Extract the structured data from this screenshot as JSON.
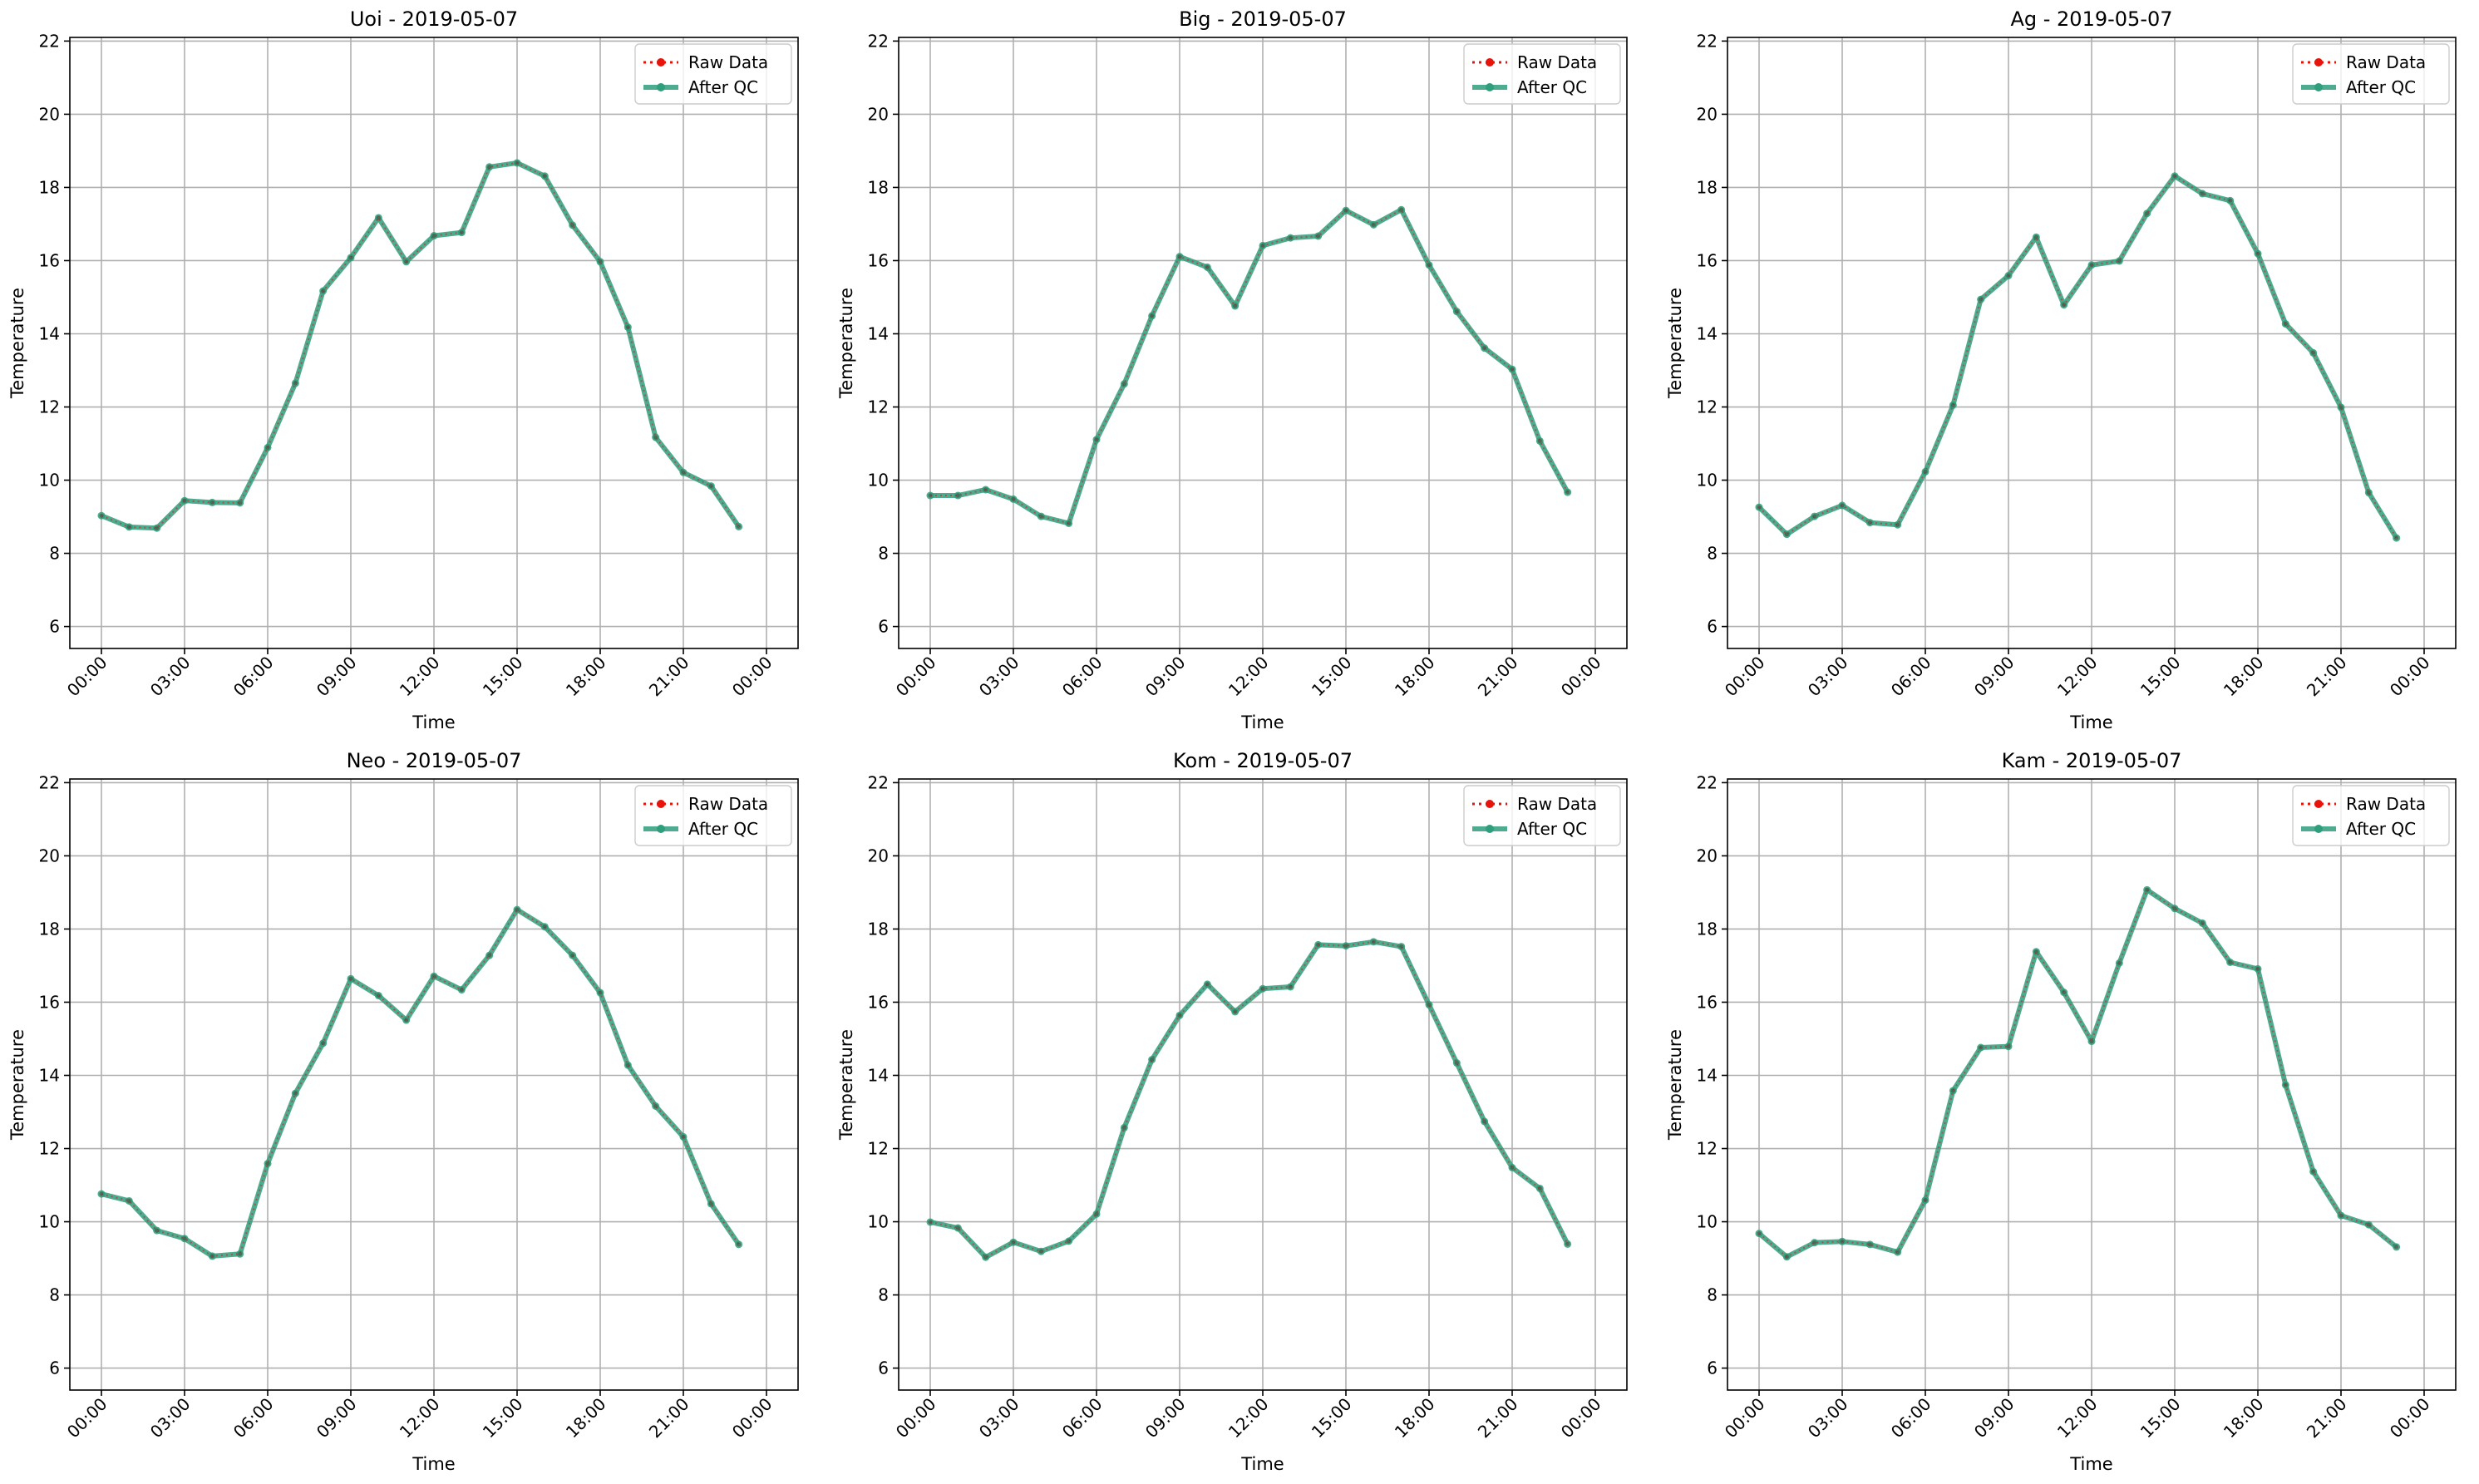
{
  "figure": {
    "colors": {
      "raw": "#e8130b",
      "qc": "#2e9e7c",
      "grid": "#b0b0b0",
      "axis": "#000000"
    }
  },
  "legend": {
    "raw_label": "Raw Data",
    "qc_label": "After QC",
    "placement": "upper-right"
  },
  "chart_data": [
    {
      "type": "line",
      "title": "Uoi - 2019-05-07",
      "xlabel": "Time",
      "ylabel": "Temperature",
      "x": [
        "00:00",
        "01:00",
        "02:00",
        "03:00",
        "04:00",
        "05:00",
        "06:00",
        "07:00",
        "08:00",
        "09:00",
        "10:00",
        "11:00",
        "12:00",
        "13:00",
        "14:00",
        "15:00",
        "16:00",
        "17:00",
        "18:00",
        "19:00",
        "20:00",
        "21:00",
        "22:00",
        "23:00"
      ],
      "xticks": [
        "00:00",
        "03:00",
        "06:00",
        "09:00",
        "12:00",
        "15:00",
        "18:00",
        "21:00",
        "00:00"
      ],
      "ylim": [
        5.4,
        22.1
      ],
      "yticks": [
        6,
        8,
        10,
        12,
        14,
        16,
        18,
        20,
        22
      ],
      "grid": true,
      "legend_position": "top-right",
      "series": [
        {
          "name": "Raw Data",
          "values": [
            9.03,
            8.72,
            8.69,
            9.44,
            9.39,
            9.38,
            10.89,
            12.65,
            15.17,
            16.08,
            17.17,
            15.97,
            16.68,
            16.77,
            18.56,
            18.67,
            18.31,
            16.97,
            15.97,
            14.18,
            11.17,
            10.21,
            9.84,
            8.73
          ]
        },
        {
          "name": "After QC",
          "values": [
            9.03,
            8.72,
            8.69,
            9.44,
            9.39,
            9.38,
            10.89,
            12.65,
            15.17,
            16.08,
            17.17,
            15.97,
            16.68,
            16.77,
            18.56,
            18.67,
            18.31,
            16.97,
            15.97,
            14.18,
            11.17,
            10.21,
            9.84,
            8.73
          ]
        }
      ]
    },
    {
      "type": "line",
      "title": "Big - 2019-05-07",
      "xlabel": "Time",
      "ylabel": "Temperature",
      "x": [
        "00:00",
        "01:00",
        "02:00",
        "03:00",
        "04:00",
        "05:00",
        "06:00",
        "07:00",
        "08:00",
        "09:00",
        "10:00",
        "11:00",
        "12:00",
        "13:00",
        "14:00",
        "15:00",
        "16:00",
        "17:00",
        "18:00",
        "19:00",
        "20:00",
        "21:00",
        "22:00",
        "23:00"
      ],
      "xticks": [
        "00:00",
        "03:00",
        "06:00",
        "09:00",
        "12:00",
        "15:00",
        "18:00",
        "21:00",
        "00:00"
      ],
      "ylim": [
        5.4,
        22.1
      ],
      "yticks": [
        6,
        8,
        10,
        12,
        14,
        16,
        18,
        20,
        22
      ],
      "grid": true,
      "legend_position": "top-right",
      "series": [
        {
          "name": "Raw Data",
          "values": [
            9.58,
            9.58,
            9.74,
            9.48,
            9.01,
            8.82,
            11.11,
            12.63,
            14.49,
            16.11,
            15.82,
            14.76,
            16.41,
            16.62,
            16.67,
            17.37,
            16.98,
            17.39,
            15.88,
            14.61,
            13.61,
            13.03,
            11.07,
            9.67
          ]
        },
        {
          "name": "After QC",
          "values": [
            9.58,
            9.58,
            9.74,
            9.48,
            9.01,
            8.82,
            11.11,
            12.63,
            14.49,
            16.11,
            15.82,
            14.76,
            16.41,
            16.62,
            16.67,
            17.37,
            16.98,
            17.39,
            15.88,
            14.61,
            13.61,
            13.03,
            11.07,
            9.67
          ]
        }
      ]
    },
    {
      "type": "line",
      "title": "Ag - 2019-05-07",
      "xlabel": "Time",
      "ylabel": "Temperature",
      "x": [
        "00:00",
        "01:00",
        "02:00",
        "03:00",
        "04:00",
        "05:00",
        "06:00",
        "07:00",
        "08:00",
        "09:00",
        "10:00",
        "11:00",
        "12:00",
        "13:00",
        "14:00",
        "15:00",
        "16:00",
        "17:00",
        "18:00",
        "19:00",
        "20:00",
        "21:00",
        "22:00",
        "23:00"
      ],
      "xticks": [
        "00:00",
        "03:00",
        "06:00",
        "09:00",
        "12:00",
        "15:00",
        "18:00",
        "21:00",
        "00:00"
      ],
      "ylim": [
        5.4,
        22.1
      ],
      "yticks": [
        6,
        8,
        10,
        12,
        14,
        16,
        18,
        20,
        22
      ],
      "grid": true,
      "legend_position": "top-right",
      "series": [
        {
          "name": "Raw Data",
          "values": [
            9.26,
            8.52,
            9.01,
            9.31,
            8.84,
            8.78,
            10.23,
            12.05,
            14.94,
            15.59,
            16.64,
            14.79,
            15.88,
            15.99,
            17.29,
            18.31,
            17.83,
            17.64,
            16.19,
            14.27,
            13.48,
            11.99,
            9.66,
            8.42
          ]
        },
        {
          "name": "After QC",
          "values": [
            9.26,
            8.52,
            9.01,
            9.31,
            8.84,
            8.78,
            10.23,
            12.05,
            14.94,
            15.59,
            16.64,
            14.79,
            15.88,
            15.99,
            17.29,
            18.31,
            17.83,
            17.64,
            16.19,
            14.27,
            13.48,
            11.99,
            9.66,
            8.42
          ]
        }
      ]
    },
    {
      "type": "line",
      "title": "Neo - 2019-05-07",
      "xlabel": "Time",
      "ylabel": "Temperature",
      "x": [
        "00:00",
        "01:00",
        "02:00",
        "03:00",
        "04:00",
        "05:00",
        "06:00",
        "07:00",
        "08:00",
        "09:00",
        "10:00",
        "11:00",
        "12:00",
        "13:00",
        "14:00",
        "15:00",
        "16:00",
        "17:00",
        "18:00",
        "19:00",
        "20:00",
        "21:00",
        "22:00",
        "23:00"
      ],
      "xticks": [
        "00:00",
        "03:00",
        "06:00",
        "09:00",
        "12:00",
        "15:00",
        "18:00",
        "21:00",
        "00:00"
      ],
      "ylim": [
        5.4,
        22.1
      ],
      "yticks": [
        6,
        8,
        10,
        12,
        14,
        16,
        18,
        20,
        22
      ],
      "grid": true,
      "legend_position": "top-right",
      "series": [
        {
          "name": "Raw Data",
          "values": [
            10.76,
            10.57,
            9.76,
            9.54,
            9.06,
            9.12,
            11.59,
            13.51,
            14.88,
            16.64,
            16.18,
            15.51,
            16.71,
            16.34,
            17.28,
            18.53,
            18.06,
            17.28,
            16.26,
            14.28,
            13.16,
            12.32,
            10.49,
            9.38
          ]
        },
        {
          "name": "After QC",
          "values": [
            10.76,
            10.57,
            9.76,
            9.54,
            9.06,
            9.12,
            11.59,
            13.51,
            14.88,
            16.64,
            16.18,
            15.51,
            16.71,
            16.34,
            17.28,
            18.53,
            18.06,
            17.28,
            16.26,
            14.28,
            13.16,
            12.32,
            10.49,
            9.38
          ]
        }
      ]
    },
    {
      "type": "line",
      "title": "Kom - 2019-05-07",
      "xlabel": "Time",
      "ylabel": "Temperature",
      "x": [
        "00:00",
        "01:00",
        "02:00",
        "03:00",
        "04:00",
        "05:00",
        "06:00",
        "07:00",
        "08:00",
        "09:00",
        "10:00",
        "11:00",
        "12:00",
        "13:00",
        "14:00",
        "15:00",
        "16:00",
        "17:00",
        "18:00",
        "19:00",
        "20:00",
        "21:00",
        "22:00",
        "23:00"
      ],
      "xticks": [
        "00:00",
        "03:00",
        "06:00",
        "09:00",
        "12:00",
        "15:00",
        "18:00",
        "21:00",
        "00:00"
      ],
      "ylim": [
        5.4,
        22.1
      ],
      "yticks": [
        6,
        8,
        10,
        12,
        14,
        16,
        18,
        20,
        22
      ],
      "grid": true,
      "legend_position": "top-right",
      "series": [
        {
          "name": "Raw Data",
          "values": [
            9.99,
            9.83,
            9.03,
            9.44,
            9.19,
            9.47,
            10.21,
            12.57,
            14.43,
            15.64,
            16.49,
            15.74,
            16.37,
            16.42,
            17.57,
            17.54,
            17.65,
            17.52,
            15.93,
            14.34,
            12.74,
            11.48,
            10.91,
            9.39
          ]
        },
        {
          "name": "After QC",
          "values": [
            9.99,
            9.83,
            9.03,
            9.44,
            9.19,
            9.47,
            10.21,
            12.57,
            14.43,
            15.64,
            16.49,
            15.74,
            16.37,
            16.42,
            17.57,
            17.54,
            17.65,
            17.52,
            15.93,
            14.34,
            12.74,
            11.48,
            10.91,
            9.39
          ]
        }
      ]
    },
    {
      "type": "line",
      "title": "Kam - 2019-05-07",
      "xlabel": "Time",
      "ylabel": "Temperature",
      "x": [
        "00:00",
        "01:00",
        "02:00",
        "03:00",
        "04:00",
        "05:00",
        "06:00",
        "07:00",
        "08:00",
        "09:00",
        "10:00",
        "11:00",
        "12:00",
        "13:00",
        "14:00",
        "15:00",
        "16:00",
        "17:00",
        "18:00",
        "19:00",
        "20:00",
        "21:00",
        "22:00",
        "23:00"
      ],
      "xticks": [
        "00:00",
        "03:00",
        "06:00",
        "09:00",
        "12:00",
        "15:00",
        "18:00",
        "21:00",
        "00:00"
      ],
      "ylim": [
        5.4,
        22.1
      ],
      "yticks": [
        6,
        8,
        10,
        12,
        14,
        16,
        18,
        20,
        22
      ],
      "grid": true,
      "legend_position": "top-right",
      "series": [
        {
          "name": "Raw Data",
          "values": [
            9.68,
            9.04,
            9.43,
            9.46,
            9.38,
            9.17,
            10.59,
            13.58,
            14.76,
            14.79,
            17.38,
            16.27,
            14.93,
            17.07,
            19.07,
            18.56,
            18.16,
            17.09,
            16.91,
            13.74,
            11.37,
            10.17,
            9.92,
            9.31
          ]
        },
        {
          "name": "After QC",
          "values": [
            9.68,
            9.04,
            9.43,
            9.46,
            9.38,
            9.17,
            10.59,
            13.58,
            14.76,
            14.79,
            17.38,
            16.27,
            14.93,
            17.07,
            19.07,
            18.56,
            18.16,
            17.09,
            16.91,
            13.74,
            11.37,
            10.17,
            9.92,
            9.31
          ]
        }
      ]
    }
  ]
}
